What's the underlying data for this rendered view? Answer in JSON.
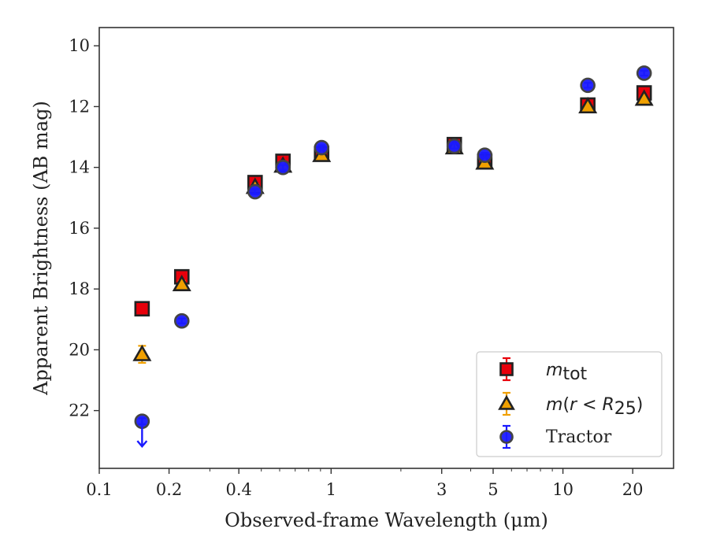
{
  "chart_data": {
    "type": "scatter",
    "xlabel": "Observed-frame Wavelength (μm)",
    "ylabel": "Apparent Brightness (AB mag)",
    "xscale": "log",
    "xlim": [
      0.1,
      30
    ],
    "ylim": [
      23.9,
      9.4
    ],
    "y_inverted": true,
    "grid": false,
    "x_ticks": [
      0.1,
      0.2,
      0.4,
      1,
      3,
      5,
      10,
      20
    ],
    "x_tick_labels": [
      "0.1",
      "0.2",
      "0.4",
      "1",
      "3",
      "5",
      "10",
      "20"
    ],
    "y_ticks": [
      10,
      12,
      14,
      16,
      18,
      20,
      22
    ],
    "y_tick_labels": [
      "10",
      "12",
      "14",
      "16",
      "18",
      "20",
      "22"
    ],
    "legend_position": "bottom-right",
    "series": [
      {
        "key": "mtot",
        "marker": "square",
        "color": "#e8000b",
        "edge_color": "#222222",
        "error_color": "#e8000b",
        "x": [
          0.153,
          0.227,
          0.47,
          0.62,
          0.91,
          3.4,
          4.6,
          12.8,
          22.4
        ],
        "y": [
          18.65,
          17.6,
          14.5,
          13.8,
          13.55,
          13.25,
          13.8,
          11.95,
          11.55
        ],
        "yerr": [
          0.12,
          0.12,
          0.12,
          0.1,
          0.1,
          0.1,
          0.1,
          0.1,
          0.1
        ]
      },
      {
        "key": "mr25",
        "marker": "triangle",
        "color": "#f0a000",
        "edge_color": "#222222",
        "error_color": "#f0a000",
        "x": [
          0.153,
          0.227,
          0.47,
          0.62,
          0.91,
          3.4,
          4.6,
          12.8,
          22.4
        ],
        "y": [
          20.15,
          17.85,
          14.65,
          13.95,
          13.6,
          13.35,
          13.85,
          12.0,
          11.75
        ],
        "yerr": [
          0.28,
          0.12,
          0.1,
          0.08,
          0.08,
          0.08,
          0.08,
          0.08,
          0.08
        ]
      },
      {
        "name": "Tractor",
        "key": "tractor",
        "marker": "circle",
        "color": "#1a1aff",
        "edge_color": "#444444",
        "error_color": "#1a1aff",
        "x": [
          0.153,
          0.227,
          0.47,
          0.62,
          0.91,
          3.4,
          4.6,
          12.8,
          22.4
        ],
        "y": [
          22.35,
          19.05,
          14.8,
          14.0,
          13.35,
          13.3,
          13.6,
          11.3,
          10.9
        ],
        "yerr": [
          0.1,
          0.08,
          0.08,
          0.08,
          0.08,
          0.08,
          0.08,
          0.08,
          0.08
        ],
        "upper_limit": [
          true,
          false,
          false,
          false,
          false,
          false,
          false,
          false,
          false
        ]
      }
    ]
  },
  "legend": {
    "mtot": {
      "base": "m",
      "sub": "tot"
    },
    "mr25": {
      "prefix": "m",
      "open": "(",
      "var": "r",
      "lt": " < ",
      "R": "R",
      "sub": "25",
      "close": ")"
    },
    "tractor": {
      "label": "Tractor"
    }
  }
}
